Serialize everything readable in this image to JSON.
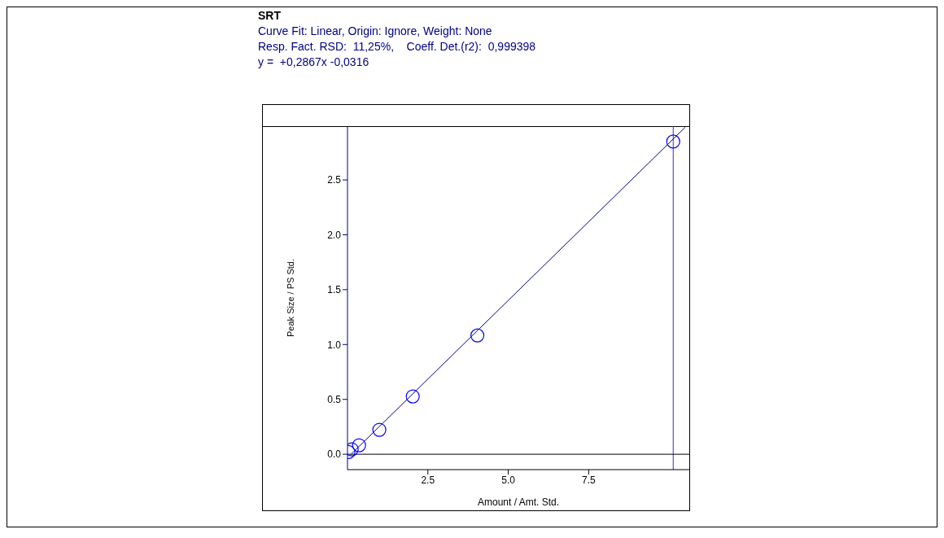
{
  "chart_data": {
    "type": "scatter",
    "title": "SRT",
    "annotations": [
      "Curve Fit: Linear, Origin: Ignore, Weight: None",
      "Resp. Fact. RSD:  11,25%,    Coeff. Det.(r2):  0,999398",
      "y =  +0,2867x -0,0316"
    ],
    "xlabel": "Amount / Amt. Std.",
    "ylabel": "Peak Size / PS Std.",
    "x": [
      0.03,
      0.13,
      0.36,
      0.99,
      2.03,
      4.04,
      10.13
    ],
    "series": [
      {
        "color": "#0000ff",
        "values": [
          0.02,
          0.045,
          0.082,
          0.223,
          0.527,
          1.083,
          2.85
        ]
      },
      {
        "type": "line",
        "marker": "none",
        "color": "#000080",
        "x": [
          0.11,
          10.5
        ],
        "values": [
          0,
          2.979
        ]
      }
    ],
    "xlim": [
      0,
      10.63
    ],
    "xticks": [
      2.5,
      {
        "value": 5,
        "label": "5.0"
      },
      7.5
    ],
    "ylim": [
      -0.14,
      2.99
    ],
    "yticks": [
      {
        "value": 0,
        "label": "0.0"
      },
      0.5,
      {
        "value": 1,
        "label": "1.0"
      },
      1.5,
      {
        "value": 2,
        "label": "2.0"
      },
      2.5
    ],
    "ref_lines": [
      {
        "axis": "x",
        "value": 10.13,
        "color": "#3333cc"
      },
      {
        "axis": "y",
        "value": 0,
        "color": "#000000"
      }
    ],
    "marker": "circle"
  }
}
